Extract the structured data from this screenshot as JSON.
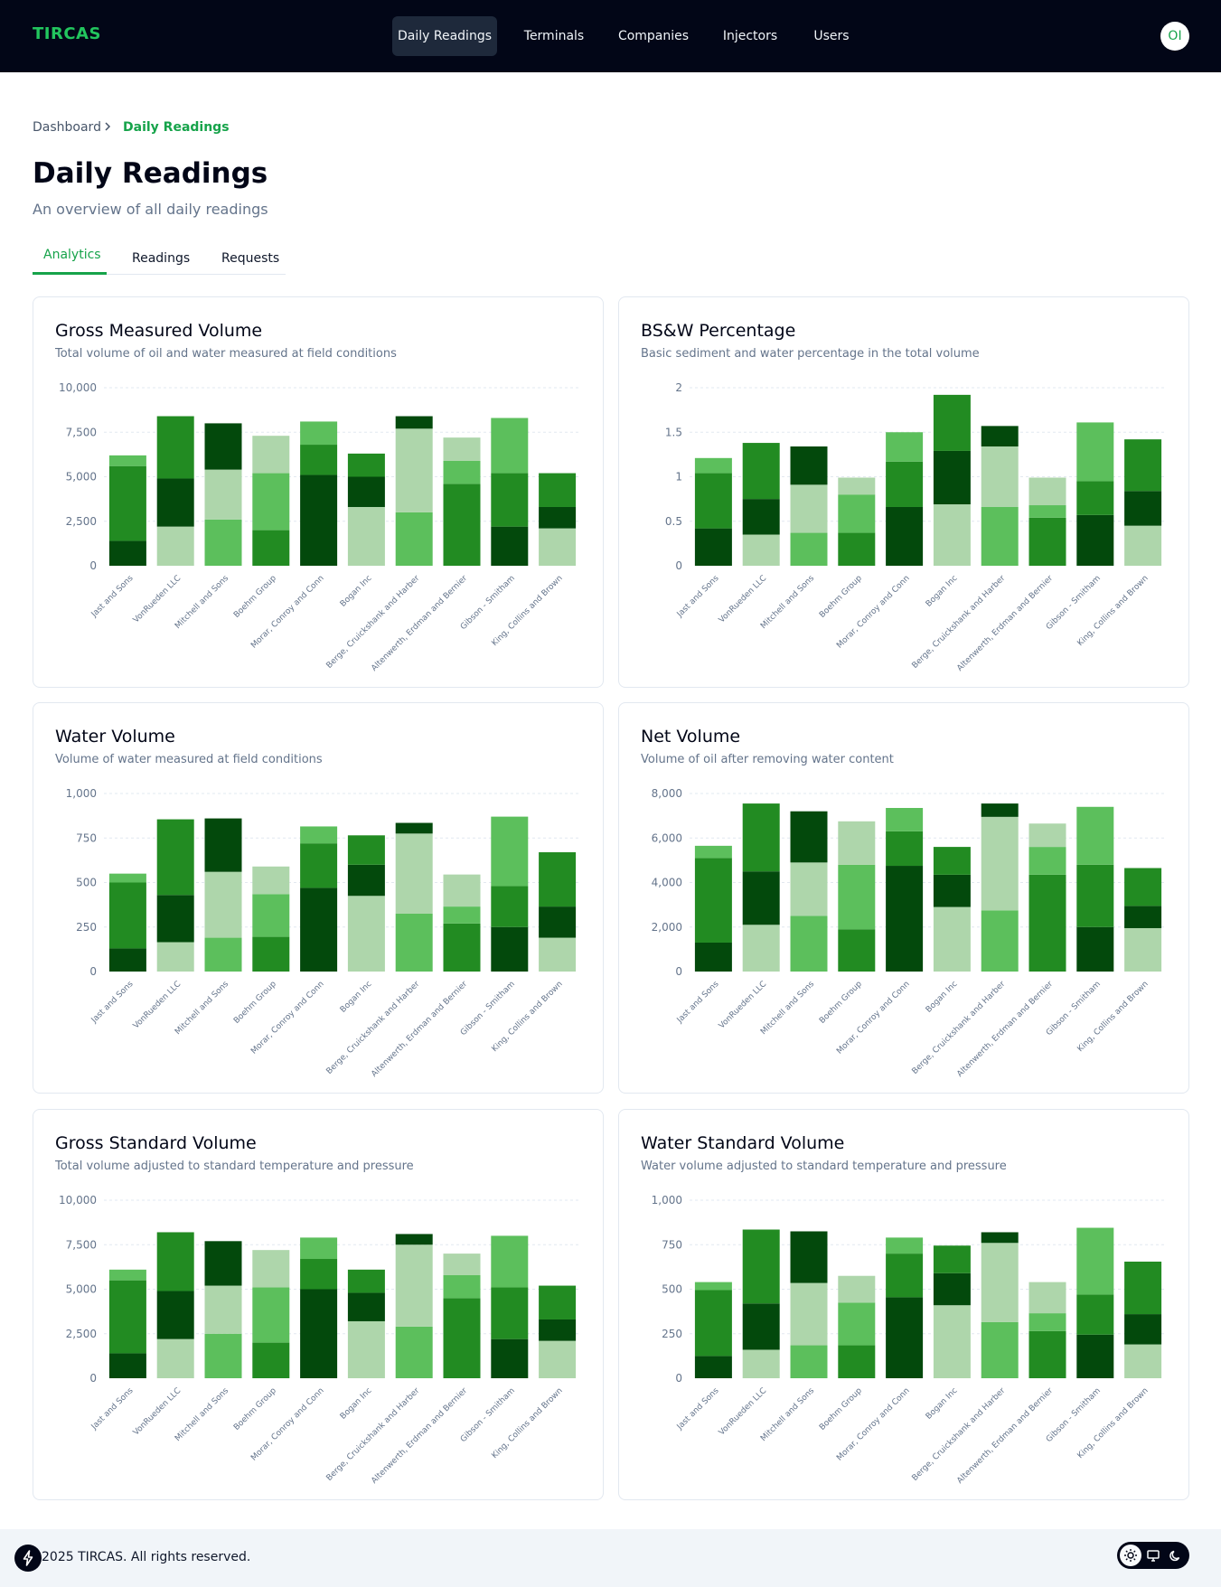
{
  "brand": "TIRCAS",
  "nav": {
    "items": [
      {
        "label": "Daily Readings",
        "active": true
      },
      {
        "label": "Terminals"
      },
      {
        "label": "Companies"
      },
      {
        "label": "Injectors"
      },
      {
        "label": "Users"
      }
    ],
    "avatar_initials": "OI"
  },
  "breadcrumb": {
    "root": "Dashboard",
    "current": "Daily Readings"
  },
  "page": {
    "title": "Daily Readings",
    "subtitle": "An overview of all daily readings"
  },
  "tabs": [
    {
      "label": "Analytics",
      "active": true
    },
    {
      "label": "Readings"
    },
    {
      "label": "Requests"
    }
  ],
  "colors": {
    "accent": "#16a34a",
    "series": [
      "#03490c",
      "#228b22",
      "#5cbf5c",
      "#aed6ab"
    ]
  },
  "chart_data": [
    {
      "type": "bar",
      "stacked": true,
      "title": "Gross Measured Volume",
      "subtitle": "Total volume of oil and water measured at field conditions",
      "categories": [
        "Jast and Sons",
        "VonRueden LLC",
        "Mitchell and Sons",
        "Boehm Group",
        "Morar, Conroy and Conn",
        "Bogan Inc",
        "Berge, Cruickshank and Harber",
        "Altenwerth, Erdman and Bernier",
        "Gibson - Smitham",
        "King, Collins and Brown"
      ],
      "yticks": [
        "0",
        "2,500",
        "5,000",
        "7,500",
        "10,000"
      ],
      "ylim": [
        0,
        10000
      ],
      "stacks": [
        [
          [
            1400,
            0
          ],
          [
            4200,
            1
          ],
          [
            600,
            2
          ]
        ],
        [
          [
            2200,
            3
          ],
          [
            2700,
            0
          ],
          [
            3500,
            1
          ]
        ],
        [
          [
            2600,
            2
          ],
          [
            2800,
            3
          ],
          [
            2600,
            0
          ]
        ],
        [
          [
            2000,
            1
          ],
          [
            3200,
            2
          ],
          [
            2100,
            3
          ]
        ],
        [
          [
            5100,
            0
          ],
          [
            1700,
            1
          ],
          [
            1300,
            2
          ]
        ],
        [
          [
            3300,
            3
          ],
          [
            1700,
            0
          ],
          [
            1300,
            1
          ]
        ],
        [
          [
            3000,
            2
          ],
          [
            4700,
            3
          ],
          [
            700,
            0
          ]
        ],
        [
          [
            4600,
            1
          ],
          [
            1300,
            2
          ],
          [
            1300,
            3
          ]
        ],
        [
          [
            2200,
            0
          ],
          [
            3000,
            1
          ],
          [
            3100,
            2
          ]
        ],
        [
          [
            2100,
            3
          ],
          [
            1200,
            0
          ],
          [
            1900,
            1
          ]
        ]
      ]
    },
    {
      "type": "bar",
      "stacked": true,
      "title": "BS&W Percentage",
      "subtitle": "Basic sediment and water percentage in the total volume",
      "categories": [
        "Jast and Sons",
        "VonRueden LLC",
        "Mitchell and Sons",
        "Boehm Group",
        "Morar, Conroy and Conn",
        "Bogan Inc",
        "Berge, Cruickshank and Harber",
        "Altenwerth, Erdman and Bernier",
        "Gibson - Smitham",
        "King, Collins and Brown"
      ],
      "yticks": [
        "0",
        "0.5",
        "1",
        "1.5",
        "2"
      ],
      "ylim": [
        0,
        2
      ],
      "stacks": [
        [
          [
            0.42,
            0
          ],
          [
            0.62,
            1
          ],
          [
            0.17,
            2
          ]
        ],
        [
          [
            0.35,
            3
          ],
          [
            0.4,
            0
          ],
          [
            0.63,
            1
          ]
        ],
        [
          [
            0.37,
            2
          ],
          [
            0.54,
            3
          ],
          [
            0.43,
            0
          ]
        ],
        [
          [
            0.37,
            1
          ],
          [
            0.43,
            2
          ],
          [
            0.19,
            3
          ]
        ],
        [
          [
            0.66,
            0
          ],
          [
            0.51,
            1
          ],
          [
            0.33,
            2
          ]
        ],
        [
          [
            0.69,
            3
          ],
          [
            0.6,
            0
          ],
          [
            0.63,
            1
          ]
        ],
        [
          [
            0.66,
            2
          ],
          [
            0.68,
            3
          ],
          [
            0.23,
            0
          ]
        ],
        [
          [
            0.54,
            1
          ],
          [
            0.14,
            2
          ],
          [
            0.31,
            3
          ]
        ],
        [
          [
            0.57,
            0
          ],
          [
            0.38,
            1
          ],
          [
            0.66,
            2
          ]
        ],
        [
          [
            0.45,
            3
          ],
          [
            0.39,
            0
          ],
          [
            0.58,
            1
          ]
        ]
      ]
    },
    {
      "type": "bar",
      "stacked": true,
      "title": "Water Volume",
      "subtitle": "Volume of water measured at field conditions",
      "categories": [
        "Jast and Sons",
        "VonRueden LLC",
        "Mitchell and Sons",
        "Boehm Group",
        "Morar, Conroy and Conn",
        "Bogan Inc",
        "Berge, Cruickshank and Harber",
        "Altenwerth, Erdman and Bernier",
        "Gibson - Smitham",
        "King, Collins and Brown"
      ],
      "yticks": [
        "0",
        "250",
        "500",
        "750",
        "1,000"
      ],
      "ylim": [
        0,
        1000
      ],
      "stacks": [
        [
          [
            130,
            0
          ],
          [
            370,
            1
          ],
          [
            50,
            2
          ]
        ],
        [
          [
            165,
            3
          ],
          [
            265,
            0
          ],
          [
            425,
            1
          ]
        ],
        [
          [
            190,
            2
          ],
          [
            370,
            3
          ],
          [
            300,
            0
          ]
        ],
        [
          [
            195,
            1
          ],
          [
            240,
            2
          ],
          [
            155,
            3
          ]
        ],
        [
          [
            470,
            0
          ],
          [
            250,
            1
          ],
          [
            95,
            2
          ]
        ],
        [
          [
            425,
            3
          ],
          [
            175,
            0
          ],
          [
            165,
            1
          ]
        ],
        [
          [
            325,
            2
          ],
          [
            450,
            3
          ],
          [
            60,
            0
          ]
        ],
        [
          [
            270,
            1
          ],
          [
            95,
            2
          ],
          [
            180,
            3
          ]
        ],
        [
          [
            250,
            0
          ],
          [
            230,
            1
          ],
          [
            390,
            2
          ]
        ],
        [
          [
            190,
            3
          ],
          [
            175,
            0
          ],
          [
            305,
            1
          ]
        ]
      ]
    },
    {
      "type": "bar",
      "stacked": true,
      "title": "Net Volume",
      "subtitle": "Volume of oil after removing water content",
      "categories": [
        "Jast and Sons",
        "VonRueden LLC",
        "Mitchell and Sons",
        "Boehm Group",
        "Morar, Conroy and Conn",
        "Bogan Inc",
        "Berge, Cruickshank and Harber",
        "Altenwerth, Erdman and Bernier",
        "Gibson - Smitham",
        "King, Collins and Brown"
      ],
      "yticks": [
        "0",
        "2,000",
        "4,000",
        "6,000",
        "8,000"
      ],
      "ylim": [
        0,
        8000
      ],
      "stacks": [
        [
          [
            1300,
            0
          ],
          [
            3800,
            1
          ],
          [
            550,
            2
          ]
        ],
        [
          [
            2100,
            3
          ],
          [
            2400,
            0
          ],
          [
            3050,
            1
          ]
        ],
        [
          [
            2500,
            2
          ],
          [
            2400,
            3
          ],
          [
            2300,
            0
          ]
        ],
        [
          [
            1900,
            1
          ],
          [
            2900,
            2
          ],
          [
            1950,
            3
          ]
        ],
        [
          [
            4750,
            0
          ],
          [
            1550,
            1
          ],
          [
            1050,
            2
          ]
        ],
        [
          [
            2900,
            3
          ],
          [
            1450,
            0
          ],
          [
            1250,
            1
          ]
        ],
        [
          [
            2750,
            2
          ],
          [
            4200,
            3
          ],
          [
            600,
            0
          ]
        ],
        [
          [
            4350,
            1
          ],
          [
            1250,
            2
          ],
          [
            1050,
            3
          ]
        ],
        [
          [
            2000,
            0
          ],
          [
            2800,
            1
          ],
          [
            2600,
            2
          ]
        ],
        [
          [
            1950,
            3
          ],
          [
            1000,
            0
          ],
          [
            1700,
            1
          ]
        ]
      ]
    },
    {
      "type": "bar",
      "stacked": true,
      "title": "Gross Standard Volume",
      "subtitle": "Total volume adjusted to standard temperature and pressure",
      "categories": [
        "Jast and Sons",
        "VonRueden LLC",
        "Mitchell and Sons",
        "Boehm Group",
        "Morar, Conroy and Conn",
        "Bogan Inc",
        "Berge, Cruickshank and Harber",
        "Altenwerth, Erdman and Bernier",
        "Gibson - Smitham",
        "King, Collins and Brown"
      ],
      "yticks": [
        "0",
        "2,500",
        "5,000",
        "7,500",
        "10,000"
      ],
      "ylim": [
        0,
        10000
      ],
      "stacks": [
        [
          [
            1400,
            0
          ],
          [
            4100,
            1
          ],
          [
            600,
            2
          ]
        ],
        [
          [
            2200,
            3
          ],
          [
            2700,
            0
          ],
          [
            3300,
            1
          ]
        ],
        [
          [
            2500,
            2
          ],
          [
            2700,
            3
          ],
          [
            2500,
            0
          ]
        ],
        [
          [
            2000,
            1
          ],
          [
            3100,
            2
          ],
          [
            2100,
            3
          ]
        ],
        [
          [
            5000,
            0
          ],
          [
            1700,
            1
          ],
          [
            1200,
            2
          ]
        ],
        [
          [
            3200,
            3
          ],
          [
            1600,
            0
          ],
          [
            1300,
            1
          ]
        ],
        [
          [
            2900,
            2
          ],
          [
            4600,
            3
          ],
          [
            600,
            0
          ]
        ],
        [
          [
            4500,
            1
          ],
          [
            1300,
            2
          ],
          [
            1200,
            3
          ]
        ],
        [
          [
            2200,
            0
          ],
          [
            2900,
            1
          ],
          [
            2900,
            2
          ]
        ],
        [
          [
            2100,
            3
          ],
          [
            1200,
            0
          ],
          [
            1900,
            1
          ]
        ]
      ]
    },
    {
      "type": "bar",
      "stacked": true,
      "title": "Water Standard Volume",
      "subtitle": "Water volume adjusted to standard temperature and pressure",
      "categories": [
        "Jast and Sons",
        "VonRueden LLC",
        "Mitchell and Sons",
        "Boehm Group",
        "Morar, Conroy and Conn",
        "Bogan Inc",
        "Berge, Cruickshank and Harber",
        "Altenwerth, Erdman and Bernier",
        "Gibson - Smitham",
        "King, Collins and Brown"
      ],
      "yticks": [
        "0",
        "250",
        "500",
        "750",
        "1,000"
      ],
      "ylim": [
        0,
        1000
      ],
      "stacks": [
        [
          [
            125,
            0
          ],
          [
            370,
            1
          ],
          [
            45,
            2
          ]
        ],
        [
          [
            160,
            3
          ],
          [
            260,
            0
          ],
          [
            415,
            1
          ]
        ],
        [
          [
            185,
            2
          ],
          [
            350,
            3
          ],
          [
            290,
            0
          ]
        ],
        [
          [
            185,
            1
          ],
          [
            240,
            2
          ],
          [
            150,
            3
          ]
        ],
        [
          [
            455,
            0
          ],
          [
            245,
            1
          ],
          [
            90,
            2
          ]
        ],
        [
          [
            410,
            3
          ],
          [
            180,
            0
          ],
          [
            155,
            1
          ]
        ],
        [
          [
            315,
            2
          ],
          [
            445,
            3
          ],
          [
            60,
            0
          ]
        ],
        [
          [
            265,
            1
          ],
          [
            100,
            2
          ],
          [
            175,
            3
          ]
        ],
        [
          [
            245,
            0
          ],
          [
            225,
            1
          ],
          [
            375,
            2
          ]
        ],
        [
          [
            190,
            3
          ],
          [
            170,
            0
          ],
          [
            295,
            1
          ]
        ]
      ]
    }
  ],
  "footer": {
    "copyright": "2025 TIRCAS. All rights reserved."
  }
}
